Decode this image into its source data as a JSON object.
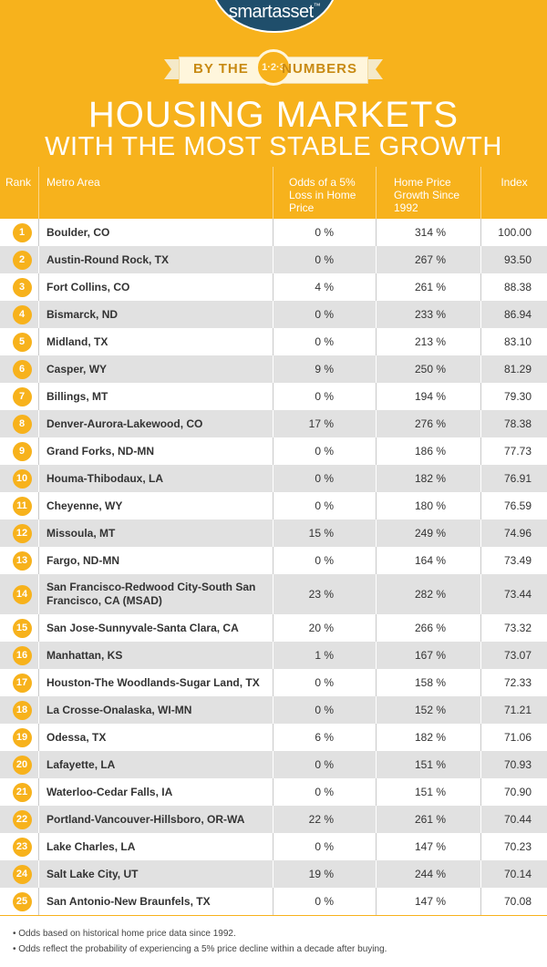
{
  "brand": {
    "logo": "smartasset",
    "tm": "™"
  },
  "ribbon": {
    "left": "BY THE",
    "badge": "1·2·3",
    "right": "NUMBERS"
  },
  "title": {
    "line1": "HOUSING MARKETS",
    "line2": "WITH THE MOST STABLE GROWTH"
  },
  "colors": {
    "accent": "#f7b21c",
    "logo_bg": "#1f4e6b",
    "row_alt": "#e1e1e1"
  },
  "table": {
    "headers": {
      "rank": "Rank",
      "metro": "Metro Area",
      "odds": "Odds of a 5% Loss in Home Price",
      "growth": "Home Price Growth Since 1992",
      "index": "Index"
    },
    "rows": [
      {
        "rank": "1",
        "metro": "Boulder, CO",
        "odds": "0 %",
        "growth": "314 %",
        "index": "100.00"
      },
      {
        "rank": "2",
        "metro": "Austin-Round Rock, TX",
        "odds": "0 %",
        "growth": "267 %",
        "index": "93.50"
      },
      {
        "rank": "3",
        "metro": "Fort Collins, CO",
        "odds": "4 %",
        "growth": "261 %",
        "index": "88.38"
      },
      {
        "rank": "4",
        "metro": "Bismarck, ND",
        "odds": "0 %",
        "growth": "233 %",
        "index": "86.94"
      },
      {
        "rank": "5",
        "metro": "Midland, TX",
        "odds": "0 %",
        "growth": "213 %",
        "index": "83.10"
      },
      {
        "rank": "6",
        "metro": "Casper, WY",
        "odds": "9 %",
        "growth": "250 %",
        "index": "81.29"
      },
      {
        "rank": "7",
        "metro": "Billings, MT",
        "odds": "0 %",
        "growth": "194 %",
        "index": "79.30"
      },
      {
        "rank": "8",
        "metro": "Denver-Aurora-Lakewood, CO",
        "odds": "17 %",
        "growth": "276 %",
        "index": "78.38"
      },
      {
        "rank": "9",
        "metro": "Grand Forks, ND-MN",
        "odds": "0 %",
        "growth": "186 %",
        "index": "77.73"
      },
      {
        "rank": "10",
        "metro": "Houma-Thibodaux, LA",
        "odds": "0 %",
        "growth": "182 %",
        "index": "76.91"
      },
      {
        "rank": "11",
        "metro": "Cheyenne, WY",
        "odds": "0 %",
        "growth": "180 %",
        "index": "76.59"
      },
      {
        "rank": "12",
        "metro": "Missoula, MT",
        "odds": "15 %",
        "growth": "249 %",
        "index": "74.96"
      },
      {
        "rank": "13",
        "metro": "Fargo, ND-MN",
        "odds": "0 %",
        "growth": "164 %",
        "index": "73.49"
      },
      {
        "rank": "14",
        "metro": "San Francisco-Redwood City-South San Francisco, CA  (MSAD)",
        "odds": "23 %",
        "growth": "282 %",
        "index": "73.44"
      },
      {
        "rank": "15",
        "metro": "San Jose-Sunnyvale-Santa Clara, CA",
        "odds": "20 %",
        "growth": "266 %",
        "index": "73.32"
      },
      {
        "rank": "16",
        "metro": "Manhattan, KS",
        "odds": "1 %",
        "growth": "167 %",
        "index": "73.07"
      },
      {
        "rank": "17",
        "metro": "Houston-The Woodlands-Sugar Land, TX",
        "odds": "0 %",
        "growth": "158 %",
        "index": "72.33"
      },
      {
        "rank": "18",
        "metro": "La Crosse-Onalaska, WI-MN",
        "odds": "0 %",
        "growth": "152 %",
        "index": "71.21"
      },
      {
        "rank": "19",
        "metro": "Odessa, TX",
        "odds": "6 %",
        "growth": "182 %",
        "index": "71.06"
      },
      {
        "rank": "20",
        "metro": "Lafayette, LA",
        "odds": "0 %",
        "growth": "151 %",
        "index": "70.93"
      },
      {
        "rank": "21",
        "metro": "Waterloo-Cedar Falls, IA",
        "odds": "0 %",
        "growth": "151 %",
        "index": "70.90"
      },
      {
        "rank": "22",
        "metro": "Portland-Vancouver-Hillsboro, OR-WA",
        "odds": "22 %",
        "growth": "261 %",
        "index": "70.44"
      },
      {
        "rank": "23",
        "metro": "Lake Charles, LA",
        "odds": "0 %",
        "growth": "147 %",
        "index": "70.23"
      },
      {
        "rank": "24",
        "metro": "Salt Lake City, UT",
        "odds": "19 %",
        "growth": "244 %",
        "index": "70.14"
      },
      {
        "rank": "25",
        "metro": "San Antonio-New Braunfels, TX",
        "odds": "0 %",
        "growth": "147 %",
        "index": "70.08"
      }
    ]
  },
  "notes": [
    "• Odds based on historical home price data since 1992.",
    "• Odds reflect the probability of experiencing a 5% price decline within a decade after buying."
  ]
}
